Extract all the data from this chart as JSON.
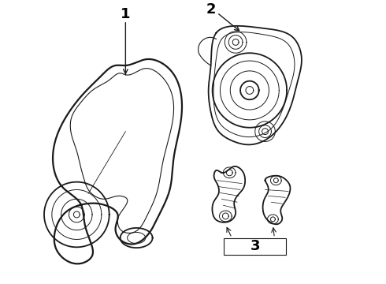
{
  "bg_color": "#ffffff",
  "line_color": "#1a1a1a",
  "label_color": "#000000",
  "label_fontsize": 13,
  "figsize": [
    4.9,
    3.6
  ],
  "dpi": 100
}
